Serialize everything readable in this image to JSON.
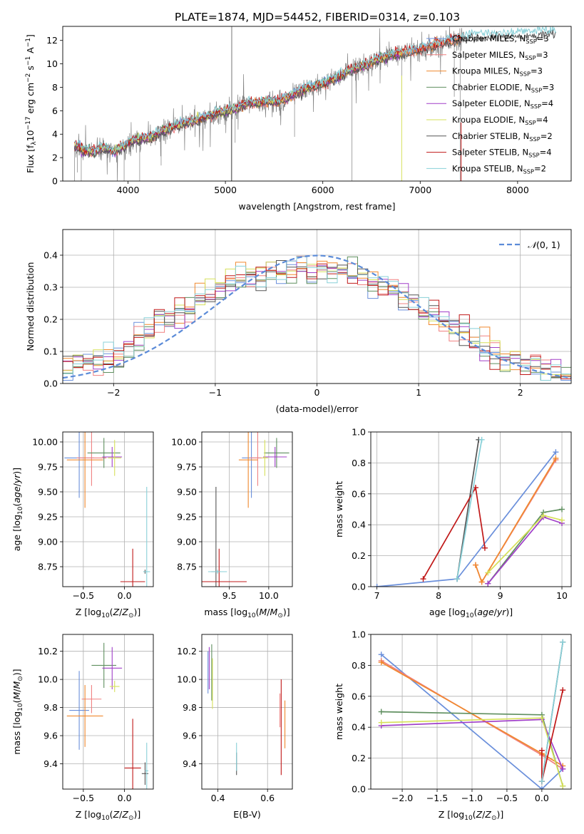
{
  "figure_title": "PLATE=1874, MJD=54452, FIBERID=0314, z=0.103",
  "colors": {
    "chabrier_miles": "#6a8fdb",
    "salpeter_miles": "#f08080",
    "kroupa_miles": "#f0892f",
    "chabrier_elodie": "#5f8f5f",
    "salpeter_elodie": "#a03fc8",
    "kroupa_elodie": "#d6e05a",
    "chabrier_stelib": "#555555",
    "salpeter_stelib": "#c01818",
    "kroupa_stelib": "#88d0d8",
    "data": "#808080",
    "normal_curve": "#5b8bd8"
  },
  "chart_data": [
    {
      "id": "spectrum",
      "type": "line",
      "xlabel": "wavelength [Angstrom, rest frame]",
      "ylabel": "Flux [f_λ 10^-17 erg cm^-2 s^-1 A^-1]",
      "xlim": [
        3330,
        8550
      ],
      "ylim": [
        0,
        13.2
      ],
      "xticks": [
        4000,
        5000,
        6000,
        7000,
        8000
      ],
      "yticks": [
        0,
        2,
        4,
        6,
        8,
        10,
        12
      ],
      "grid": false,
      "legend_position": "right",
      "continuum": {
        "x": [
          3450,
          3550,
          3650,
          3750,
          3850,
          3950,
          4050,
          4150,
          4250,
          4350,
          4450,
          4550,
          4650,
          4750,
          4850,
          4950,
          5050,
          5150,
          5250,
          5350,
          5450,
          5550,
          5650,
          5750,
          5850,
          5950,
          6050,
          6150,
          6250,
          6350,
          6450,
          6550,
          6650,
          6750,
          6850,
          6950,
          7050,
          7150,
          7250,
          7350,
          7450
        ],
        "y": [
          3.0,
          2.6,
          2.4,
          2.8,
          2.5,
          2.9,
          3.4,
          3.6,
          3.7,
          4.2,
          4.5,
          4.8,
          5.0,
          5.3,
          5.6,
          5.8,
          6.0,
          6.3,
          6.6,
          6.6,
          6.8,
          6.7,
          7.1,
          7.6,
          7.9,
          8.2,
          8.4,
          8.8,
          9.3,
          9.6,
          9.9,
          10.3,
          10.6,
          10.8,
          10.9,
          11.1,
          11.3,
          11.6,
          11.8,
          12.0,
          12.3
        ]
      },
      "legend": [
        {
          "label": "Chabrier MILES, N_SSP=3",
          "base": "Chabrier MILES, N",
          "sub": "SSP",
          "tail": "=3",
          "color_key": "chabrier_miles"
        },
        {
          "label": "Salpeter MILES, N_SSP=3",
          "base": "Salpeter MILES, N",
          "sub": "SSP",
          "tail": "=3",
          "color_key": "salpeter_miles"
        },
        {
          "label": "Kroupa MILES, N_SSP=3",
          "base": "Kroupa MILES, N",
          "sub": "SSP",
          "tail": "=3",
          "color_key": "kroupa_miles"
        },
        {
          "label": "Chabrier ELODIE, N_SSP=3",
          "base": "Chabrier ELODIE, N",
          "sub": "SSP",
          "tail": "=3",
          "color_key": "chabrier_elodie"
        },
        {
          "label": "Salpeter ELODIE, N_SSP=4",
          "base": "Salpeter ELODIE, N",
          "sub": "SSP",
          "tail": "=4",
          "color_key": "salpeter_elodie"
        },
        {
          "label": "Kroupa ELODIE, N_SSP=4",
          "base": "Kroupa ELODIE, N",
          "sub": "SSP",
          "tail": "=4",
          "color_key": "kroupa_elodie"
        },
        {
          "label": "Chabrier STELIB, N_SSP=2",
          "base": "Chabrier STELIB, N",
          "sub": "SSP",
          "tail": "=2",
          "color_key": "chabrier_stelib"
        },
        {
          "label": "Salpeter STELIB, N_SSP=4",
          "base": "Salpeter STELIB, N",
          "sub": "SSP",
          "tail": "=4",
          "color_key": "salpeter_stelib"
        },
        {
          "label": "Kroupa STELIB, N_SSP=2",
          "base": "Kroupa STELIB, N",
          "sub": "SSP",
          "tail": "=2",
          "color_key": "kroupa_stelib"
        }
      ]
    },
    {
      "id": "residuals",
      "type": "histogram",
      "xlabel": "(data-model)/error",
      "ylabel": "Normed distribution",
      "xlim": [
        -2.5,
        2.5
      ],
      "ylim": [
        0,
        0.48
      ],
      "xticks": [
        -2,
        -1,
        0,
        1,
        2
      ],
      "yticks": [
        0.0,
        0.1,
        0.2,
        0.3,
        0.4
      ],
      "grid": true,
      "legend_position": "top-right",
      "curve_label": "N(0,1)",
      "reference_profile": {
        "x": [
          -2.5,
          -2.4,
          -2.3,
          -2.2,
          -2.1,
          -2.0,
          -1.9,
          -1.8,
          -1.7,
          -1.6,
          -1.5,
          -1.4,
          -1.3,
          -1.2,
          -1.1,
          -1.0,
          -0.9,
          -0.8,
          -0.7,
          -0.6,
          -0.5,
          -0.4,
          -0.3,
          -0.2,
          -0.1,
          0.0,
          0.1,
          0.2,
          0.3,
          0.4,
          0.5,
          0.6,
          0.7,
          0.8,
          0.9,
          1.0,
          1.1,
          1.2,
          1.3,
          1.4,
          1.5,
          1.6,
          1.7,
          1.8,
          1.9,
          2.0,
          2.1,
          2.2,
          2.3,
          2.4
        ],
        "y": [
          0.05,
          0.06,
          0.07,
          0.08,
          0.09,
          0.1,
          0.12,
          0.14,
          0.16,
          0.18,
          0.2,
          0.22,
          0.24,
          0.26,
          0.28,
          0.3,
          0.31,
          0.32,
          0.33,
          0.34,
          0.35,
          0.35,
          0.36,
          0.36,
          0.36,
          0.36,
          0.35,
          0.35,
          0.34,
          0.33,
          0.32,
          0.31,
          0.29,
          0.27,
          0.25,
          0.23,
          0.21,
          0.19,
          0.17,
          0.15,
          0.13,
          0.11,
          0.1,
          0.08,
          0.07,
          0.06,
          0.05,
          0.04,
          0.04,
          0.03
        ]
      }
    },
    {
      "id": "age_vs_Z",
      "type": "scatter",
      "xlabel": "Z [log10(Z/Z⊙)]",
      "ylabel": "age  [log10(age/yr)]",
      "xlim": [
        -0.75,
        0.35
      ],
      "ylim": [
        8.55,
        10.1
      ],
      "xticks": [
        -0.5,
        0.0
      ],
      "yticks": [
        8.75,
        9.0,
        9.25,
        9.5,
        9.75,
        10.0
      ],
      "grid": true,
      "points": [
        {
          "x": -0.55,
          "y": 9.84,
          "xerr": 0.18,
          "yerr": 0.4,
          "color_key": "chabrier_miles"
        },
        {
          "x": -0.4,
          "y": 9.84,
          "xerr": 0.18,
          "yerr": 0.28,
          "color_key": "salpeter_miles"
        },
        {
          "x": -0.48,
          "y": 9.82,
          "xerr": 0.22,
          "yerr": 0.48,
          "color_key": "kroupa_miles"
        },
        {
          "x": -0.25,
          "y": 9.89,
          "xerr": 0.2,
          "yerr": 0.15,
          "color_key": "chabrier_elodie"
        },
        {
          "x": -0.15,
          "y": 9.85,
          "xerr": 0.12,
          "yerr": 0.1,
          "color_key": "salpeter_elodie"
        },
        {
          "x": -0.12,
          "y": 9.84,
          "xerr": 0.08,
          "yerr": 0.18,
          "color_key": "kroupa_elodie"
        },
        {
          "x": 0.25,
          "y": 8.7,
          "xerr": 0.02,
          "yerr": 0.02,
          "color_key": "chabrier_stelib"
        },
        {
          "x": 0.1,
          "y": 8.6,
          "xerr": 0.15,
          "yerr": 0.33,
          "color_key": "salpeter_stelib"
        },
        {
          "x": 0.27,
          "y": 8.7,
          "xerr": 0.04,
          "yerr": 0.85,
          "color_key": "kroupa_stelib"
        }
      ]
    },
    {
      "id": "age_vs_mass",
      "type": "scatter",
      "xlabel": "mass [log10(M/M⊙)]",
      "ylabel": "",
      "xlim": [
        9.15,
        10.3
      ],
      "ylim": [
        8.55,
        10.1
      ],
      "xticks": [
        9.5,
        10.0
      ],
      "yticks": [
        8.75,
        9.0,
        9.25,
        9.5,
        9.75,
        10.0
      ],
      "grid": true,
      "points": [
        {
          "x": 9.78,
          "y": 9.84,
          "xerr": 0.12,
          "yerr": 0.4,
          "color_key": "chabrier_miles"
        },
        {
          "x": 9.86,
          "y": 9.84,
          "xerr": 0.1,
          "yerr": 0.28,
          "color_key": "salpeter_miles"
        },
        {
          "x": 9.74,
          "y": 9.82,
          "xerr": 0.12,
          "yerr": 0.48,
          "color_key": "kroupa_miles"
        },
        {
          "x": 10.1,
          "y": 9.89,
          "xerr": 0.16,
          "yerr": 0.15,
          "color_key": "chabrier_elodie"
        },
        {
          "x": 10.08,
          "y": 9.85,
          "xerr": 0.15,
          "yerr": 0.1,
          "color_key": "salpeter_elodie"
        },
        {
          "x": 9.95,
          "y": 9.84,
          "xerr": 0.04,
          "yerr": 0.18,
          "color_key": "kroupa_elodie"
        },
        {
          "x": 9.33,
          "y": 8.7,
          "xerr": 0.06,
          "yerr": 0.85,
          "color_key": "chabrier_stelib"
        },
        {
          "x": 9.37,
          "y": 8.6,
          "xerr": 0.35,
          "yerr": 0.33,
          "color_key": "salpeter_stelib"
        },
        {
          "x": 9.35,
          "y": 8.7,
          "xerr": 0.12,
          "yerr": 0.02,
          "color_key": "kroupa_stelib"
        }
      ]
    },
    {
      "id": "weight_vs_age",
      "type": "line",
      "xlabel": "age  [log10(age/yr)]",
      "ylabel": "mass weight",
      "xlim": [
        6.9,
        10.15
      ],
      "ylim": [
        0,
        1.0
      ],
      "xticks": [
        7,
        8,
        9,
        10
      ],
      "yticks": [
        0.0,
        0.2,
        0.4,
        0.6,
        0.8,
        1.0
      ],
      "grid": true,
      "series": [
        {
          "color_key": "chabrier_miles",
          "x": [
            7.0,
            8.3,
            9.9
          ],
          "y": [
            0.0,
            0.05,
            0.87
          ]
        },
        {
          "color_key": "salpeter_miles",
          "x": [
            8.6,
            8.7,
            9.9
          ],
          "y": [
            0.14,
            0.03,
            0.82
          ]
        },
        {
          "color_key": "kroupa_miles",
          "x": [
            8.6,
            8.7,
            9.9
          ],
          "y": [
            0.14,
            0.03,
            0.83
          ]
        },
        {
          "color_key": "chabrier_elodie",
          "x": [
            8.8,
            9.7,
            10.0
          ],
          "y": [
            0.02,
            0.48,
            0.5
          ]
        },
        {
          "color_key": "salpeter_elodie",
          "x": [
            8.8,
            9.7,
            10.0
          ],
          "y": [
            0.02,
            0.45,
            0.41
          ]
        },
        {
          "color_key": "kroupa_elodie",
          "x": [
            8.8,
            9.7,
            10.0
          ],
          "y": [
            0.09,
            0.46,
            0.43
          ]
        },
        {
          "color_key": "chabrier_stelib",
          "x": [
            8.3,
            8.65
          ],
          "y": [
            0.05,
            0.95
          ]
        },
        {
          "color_key": "salpeter_stelib",
          "x": [
            7.75,
            8.6,
            8.75
          ],
          "y": [
            0.05,
            0.64,
            0.25
          ]
        },
        {
          "color_key": "kroupa_stelib",
          "x": [
            8.3,
            8.7
          ],
          "y": [
            0.05,
            0.95
          ]
        }
      ]
    },
    {
      "id": "mass_vs_Z",
      "type": "scatter",
      "xlabel": "Z [log10(Z/Z⊙)]",
      "ylabel": "mass [log10(M/M⊙)]",
      "xlim": [
        -0.75,
        0.35
      ],
      "ylim": [
        9.22,
        10.32
      ],
      "xticks": [
        -0.5,
        0.0
      ],
      "yticks": [
        9.4,
        9.6,
        9.8,
        10.0,
        10.2
      ],
      "grid": true,
      "points": [
        {
          "x": -0.55,
          "y": 9.78,
          "xerr": 0.12,
          "yerr": 0.28,
          "color_key": "chabrier_miles"
        },
        {
          "x": -0.4,
          "y": 9.86,
          "xerr": 0.12,
          "yerr": 0.1,
          "color_key": "salpeter_miles"
        },
        {
          "x": -0.48,
          "y": 9.74,
          "xerr": 0.22,
          "yerr": 0.22,
          "color_key": "kroupa_miles"
        },
        {
          "x": -0.25,
          "y": 10.1,
          "xerr": 0.15,
          "yerr": 0.16,
          "color_key": "chabrier_elodie"
        },
        {
          "x": -0.15,
          "y": 10.08,
          "xerr": 0.12,
          "yerr": 0.15,
          "color_key": "salpeter_elodie"
        },
        {
          "x": -0.12,
          "y": 9.95,
          "xerr": 0.06,
          "yerr": 0.04,
          "color_key": "kroupa_elodie"
        },
        {
          "x": 0.25,
          "y": 9.33,
          "xerr": 0.04,
          "yerr": 0.08,
          "color_key": "chabrier_stelib"
        },
        {
          "x": 0.1,
          "y": 9.37,
          "xerr": 0.1,
          "yerr": 0.35,
          "color_key": "salpeter_stelib"
        },
        {
          "x": 0.27,
          "y": 9.35,
          "xerr": 0.02,
          "yerr": 0.2,
          "color_key": "kroupa_stelib"
        }
      ]
    },
    {
      "id": "mass_vs_EBV",
      "type": "scatter",
      "xlabel": "E(B-V)",
      "ylabel": "",
      "xlim": [
        0.335,
        0.7
      ],
      "ylim": [
        9.22,
        10.32
      ],
      "xticks": [
        0.4,
        0.6
      ],
      "yticks": [
        9.4,
        9.6,
        9.8,
        10.0,
        10.2
      ],
      "grid": true,
      "points": [
        {
          "x": 0.36,
          "y": 10.05,
          "xerr": 0,
          "yerr": 0.15,
          "color_key": "chabrier_miles"
        },
        {
          "x": 0.65,
          "y": 9.78,
          "xerr": 0,
          "yerr": 0.12,
          "color_key": "salpeter_miles"
        },
        {
          "x": 0.67,
          "y": 9.68,
          "xerr": 0,
          "yerr": 0.17,
          "color_key": "kroupa_miles"
        },
        {
          "x": 0.375,
          "y": 10.05,
          "xerr": 0,
          "yerr": 0.2,
          "color_key": "chabrier_elodie"
        },
        {
          "x": 0.365,
          "y": 10.08,
          "xerr": 0,
          "yerr": 0.15,
          "color_key": "salpeter_elodie"
        },
        {
          "x": 0.378,
          "y": 9.97,
          "xerr": 0,
          "yerr": 0.18,
          "color_key": "kroupa_elodie"
        },
        {
          "x": 0.475,
          "y": 9.4,
          "xerr": 0,
          "yerr": 0.08,
          "color_key": "chabrier_stelib"
        },
        {
          "x": 0.655,
          "y": 9.66,
          "xerr": 0,
          "yerr": 0.34,
          "color_key": "salpeter_stelib"
        },
        {
          "x": 0.475,
          "y": 9.45,
          "xerr": 0,
          "yerr": 0.1,
          "color_key": "kroupa_stelib"
        }
      ]
    },
    {
      "id": "weight_vs_Z",
      "type": "line",
      "xlabel": "Z [log10(Z/Z⊙)]",
      "ylabel": "mass weight",
      "xlim": [
        -2.45,
        0.42
      ],
      "ylim": [
        0,
        1.0
      ],
      "xticks": [
        -2.0,
        -1.5,
        -1.0,
        -0.5,
        0.0
      ],
      "yticks": [
        0.0,
        0.2,
        0.4,
        0.6,
        0.8,
        1.0
      ],
      "grid": true,
      "series": [
        {
          "color_key": "chabrier_miles",
          "x": [
            -2.3,
            0.0,
            0.3
          ],
          "y": [
            0.87,
            0.0,
            0.13
          ]
        },
        {
          "color_key": "salpeter_miles",
          "x": [
            -2.3,
            0.0,
            0.3
          ],
          "y": [
            0.83,
            0.22,
            0.13
          ]
        },
        {
          "color_key": "kroupa_miles",
          "x": [
            -2.3,
            0.0,
            0.3
          ],
          "y": [
            0.82,
            0.23,
            0.15
          ]
        },
        {
          "color_key": "chabrier_elodie",
          "x": [
            -2.3,
            0.0,
            0.3
          ],
          "y": [
            0.5,
            0.48,
            0.02
          ]
        },
        {
          "color_key": "salpeter_elodie",
          "x": [
            -2.3,
            0.0,
            0.3
          ],
          "y": [
            0.41,
            0.45,
            0.13
          ]
        },
        {
          "color_key": "kroupa_elodie",
          "x": [
            -2.3,
            0.0,
            0.3
          ],
          "y": [
            0.43,
            0.46,
            0.02
          ]
        },
        {
          "color_key": "chabrier_stelib",
          "x": [
            0.0,
            0.3
          ],
          "y": [
            0.05,
            0.95
          ]
        },
        {
          "color_key": "salpeter_stelib",
          "x": [
            0.0,
            0.0,
            0.3
          ],
          "y": [
            0.25,
            0.05,
            0.64
          ]
        },
        {
          "color_key": "kroupa_stelib",
          "x": [
            0.0,
            0.3
          ],
          "y": [
            0.05,
            0.95
          ]
        }
      ]
    }
  ]
}
